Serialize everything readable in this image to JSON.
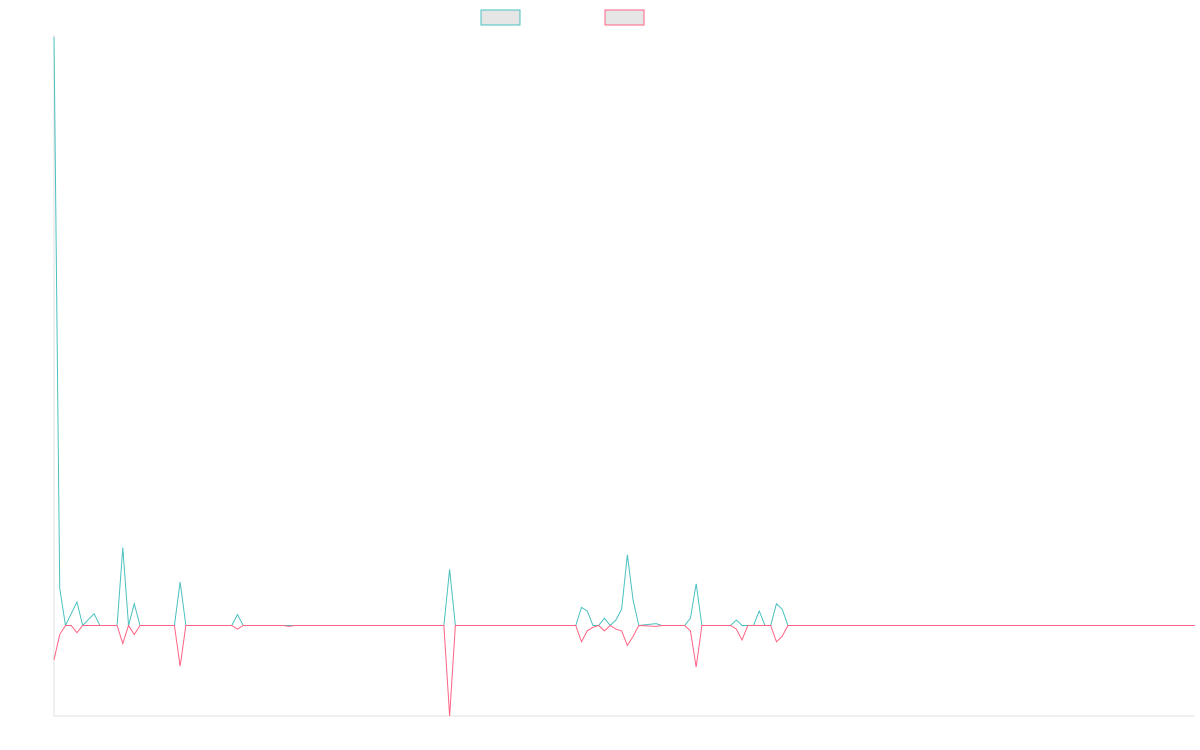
{
  "chart_data": {
    "type": "line",
    "title": "",
    "xlabel": "",
    "ylabel": "",
    "grid": false,
    "legend": {
      "position": "top-center",
      "entries": [
        "",
        ""
      ]
    },
    "ylim": [
      -100,
      650
    ],
    "point_count": 200,
    "series": [
      {
        "color": "#4bc0c0",
        "fill": "#e6e6e6",
        "points": [
          [
            0,
            650
          ],
          [
            1,
            41
          ],
          [
            2,
            0
          ],
          [
            4,
            26
          ],
          [
            5,
            0
          ],
          [
            7,
            13
          ],
          [
            8,
            0
          ],
          [
            11,
            0
          ],
          [
            12,
            86
          ],
          [
            13,
            0
          ],
          [
            14,
            24
          ],
          [
            15,
            0
          ],
          [
            21,
            0
          ],
          [
            22,
            48
          ],
          [
            23,
            0
          ],
          [
            31,
            0
          ],
          [
            32,
            12
          ],
          [
            33,
            0
          ],
          [
            68,
            0
          ],
          [
            69,
            62
          ],
          [
            70,
            0
          ],
          [
            91,
            0
          ],
          [
            92,
            20
          ],
          [
            93,
            16
          ],
          [
            94,
            0
          ],
          [
            95,
            0
          ],
          [
            96,
            8
          ],
          [
            97,
            0
          ],
          [
            98,
            6
          ],
          [
            99,
            18
          ],
          [
            100,
            78
          ],
          [
            101,
            28
          ],
          [
            102,
            0
          ],
          [
            105,
            2
          ],
          [
            106,
            0
          ],
          [
            110,
            0
          ],
          [
            111,
            8
          ],
          [
            112,
            46
          ],
          [
            113,
            0
          ],
          [
            118,
            0
          ],
          [
            119,
            6
          ],
          [
            120,
            0
          ],
          [
            122,
            0
          ],
          [
            123,
            16
          ],
          [
            124,
            0
          ],
          [
            125,
            0
          ],
          [
            126,
            24
          ],
          [
            127,
            18
          ],
          [
            128,
            0
          ],
          [
            199,
            0
          ]
        ]
      },
      {
        "color": "#ff6384",
        "fill": "#e6e6e6",
        "points": [
          [
            0,
            -38
          ],
          [
            1,
            -10
          ],
          [
            2,
            0
          ],
          [
            3,
            0
          ],
          [
            4,
            -8
          ],
          [
            5,
            0
          ],
          [
            7,
            0
          ],
          [
            8,
            0
          ],
          [
            11,
            0
          ],
          [
            12,
            -20
          ],
          [
            13,
            0
          ],
          [
            14,
            -10
          ],
          [
            15,
            0
          ],
          [
            21,
            0
          ],
          [
            22,
            -45
          ],
          [
            23,
            0
          ],
          [
            31,
            0
          ],
          [
            32,
            -4
          ],
          [
            33,
            0
          ],
          [
            40,
            0
          ],
          [
            41,
            -1
          ],
          [
            42,
            0
          ],
          [
            68,
            0
          ],
          [
            69,
            -100
          ],
          [
            70,
            0
          ],
          [
            91,
            0
          ],
          [
            92,
            -18
          ],
          [
            93,
            -6
          ],
          [
            94,
            -2
          ],
          [
            95,
            0
          ],
          [
            96,
            -6
          ],
          [
            97,
            0
          ],
          [
            98,
            -4
          ],
          [
            99,
            -6
          ],
          [
            100,
            -22
          ],
          [
            101,
            -12
          ],
          [
            102,
            0
          ],
          [
            105,
            -1
          ],
          [
            106,
            0
          ],
          [
            110,
            0
          ],
          [
            111,
            -6
          ],
          [
            112,
            -46
          ],
          [
            113,
            0
          ],
          [
            118,
            0
          ],
          [
            119,
            -4
          ],
          [
            120,
            -16
          ],
          [
            121,
            0
          ],
          [
            122,
            0
          ],
          [
            123,
            0
          ],
          [
            124,
            0
          ],
          [
            125,
            0
          ],
          [
            126,
            -18
          ],
          [
            127,
            -12
          ],
          [
            128,
            0
          ],
          [
            199,
            0
          ]
        ]
      }
    ]
  }
}
